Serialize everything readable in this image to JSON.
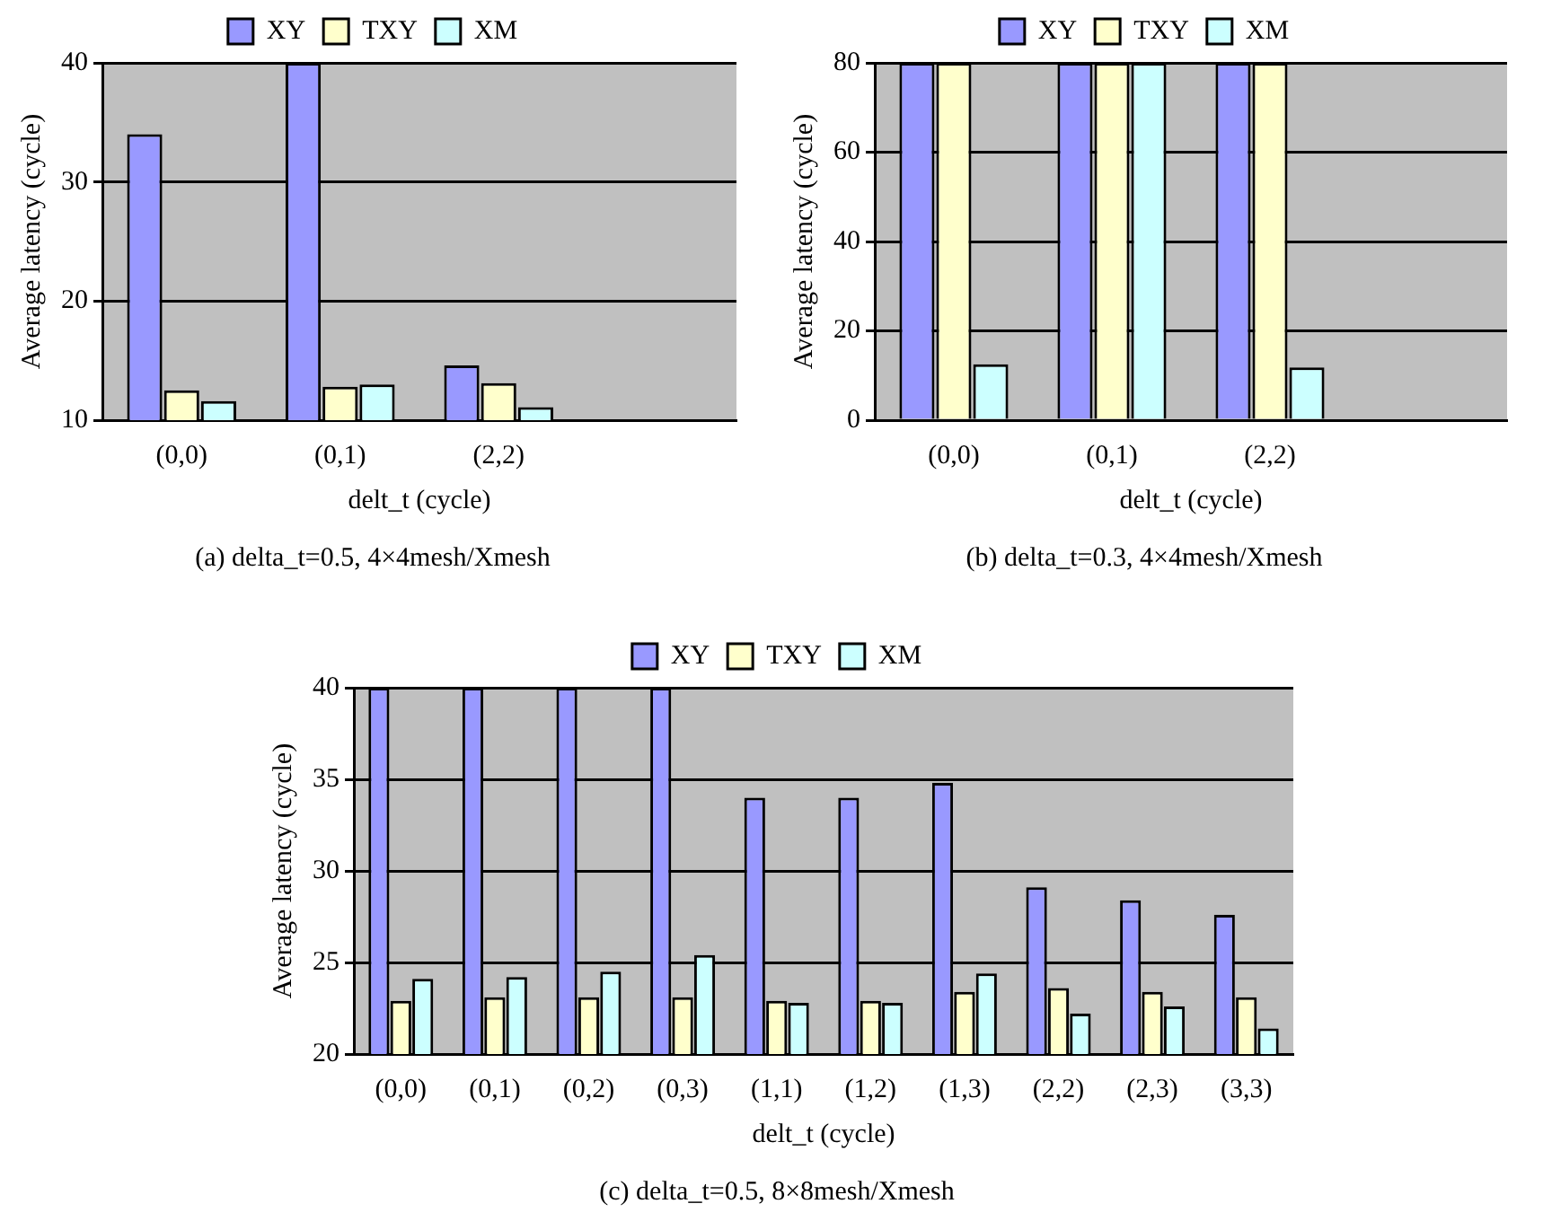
{
  "chart_data": [
    {
      "type": "bar",
      "title": "(a) delta_t=0.5, 4×4mesh/Xmesh",
      "xlabel": "delt_t (cycle)",
      "ylabel": "Average latency (cycle)",
      "categories": [
        "(0,0)",
        "(0,1)",
        "(2,2)",
        null
      ],
      "series": [
        {
          "name": "XY",
          "color": "#9999ff",
          "values": [
            34,
            40,
            14.6,
            null
          ]
        },
        {
          "name": "TXY",
          "color": "#ffffcc",
          "values": [
            12.5,
            12.8,
            13.1,
            null
          ]
        },
        {
          "name": "XM",
          "color": "#ccffff",
          "values": [
            11.6,
            13,
            11.1,
            null
          ]
        }
      ],
      "ylim": [
        10,
        40
      ],
      "yticks": [
        10,
        20,
        30,
        40
      ],
      "grid": "y",
      "legend": "top"
    },
    {
      "type": "bar",
      "title": "(b) delta_t=0.3, 4×4mesh/Xmesh",
      "xlabel": "delt_t (cycle)",
      "ylabel": "Average latency (cycle)",
      "categories": [
        "(0,0)",
        "(0,1)",
        "(2,2)",
        null
      ],
      "series": [
        {
          "name": "XY",
          "color": "#9999ff",
          "values": [
            80,
            80,
            80,
            null
          ]
        },
        {
          "name": "TXY",
          "color": "#ffffcc",
          "values": [
            80,
            80,
            80,
            null
          ]
        },
        {
          "name": "XM",
          "color": "#ccffff",
          "values": [
            12.5,
            80,
            11.8,
            null
          ]
        }
      ],
      "ylim": [
        0,
        80
      ],
      "yticks": [
        0,
        20,
        40,
        60,
        80
      ],
      "grid": "y",
      "legend": "top"
    },
    {
      "type": "bar",
      "title": "(c) delta_t=0.5, 8×8mesh/Xmesh",
      "xlabel": "delt_t (cycle)",
      "ylabel": "Average latency (cycle)",
      "categories": [
        "(0,0)",
        "(0,1)",
        "(0,2)",
        "(0,3)",
        "(1,1)",
        "(1,2)",
        "(1,3)",
        "(2,2)",
        "(2,3)",
        "(3,3)"
      ],
      "series": [
        {
          "name": "XY",
          "color": "#9999ff",
          "values": [
            40,
            40,
            40,
            40,
            34,
            34,
            34.8,
            29.1,
            28.4,
            27.6
          ]
        },
        {
          "name": "TXY",
          "color": "#ffffcc",
          "values": [
            22.9,
            23.1,
            23.1,
            23.1,
            22.9,
            22.9,
            23.4,
            23.6,
            23.4,
            23.1
          ]
        },
        {
          "name": "XM",
          "color": "#ccffff",
          "values": [
            24.1,
            24.2,
            24.5,
            25.4,
            22.8,
            22.8,
            24.4,
            22.2,
            22.6,
            21.4
          ]
        }
      ],
      "ylim": [
        20,
        40
      ],
      "yticks": [
        20,
        25,
        30,
        35,
        40
      ],
      "grid": "y",
      "legend": "top"
    }
  ]
}
